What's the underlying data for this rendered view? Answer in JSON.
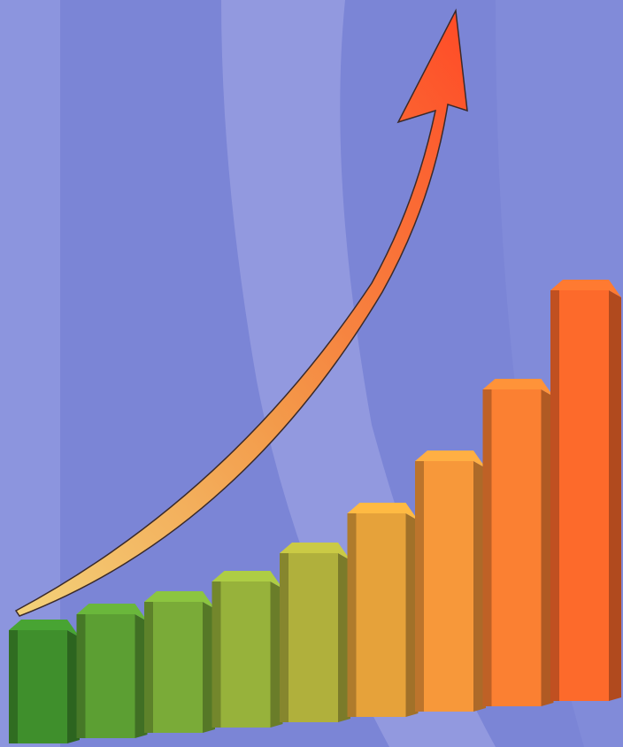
{
  "chart_data": {
    "type": "bar",
    "values": [
      128,
      140,
      148,
      165,
      191,
      230,
      283,
      358,
      464
    ],
    "colors": [
      "#3f8f2c",
      "#5c9f33",
      "#7aab38",
      "#97b23b",
      "#b0b03c",
      "#e6a23a",
      "#f7983a",
      "#fb8032",
      "#fd6a2b"
    ]
  }
}
